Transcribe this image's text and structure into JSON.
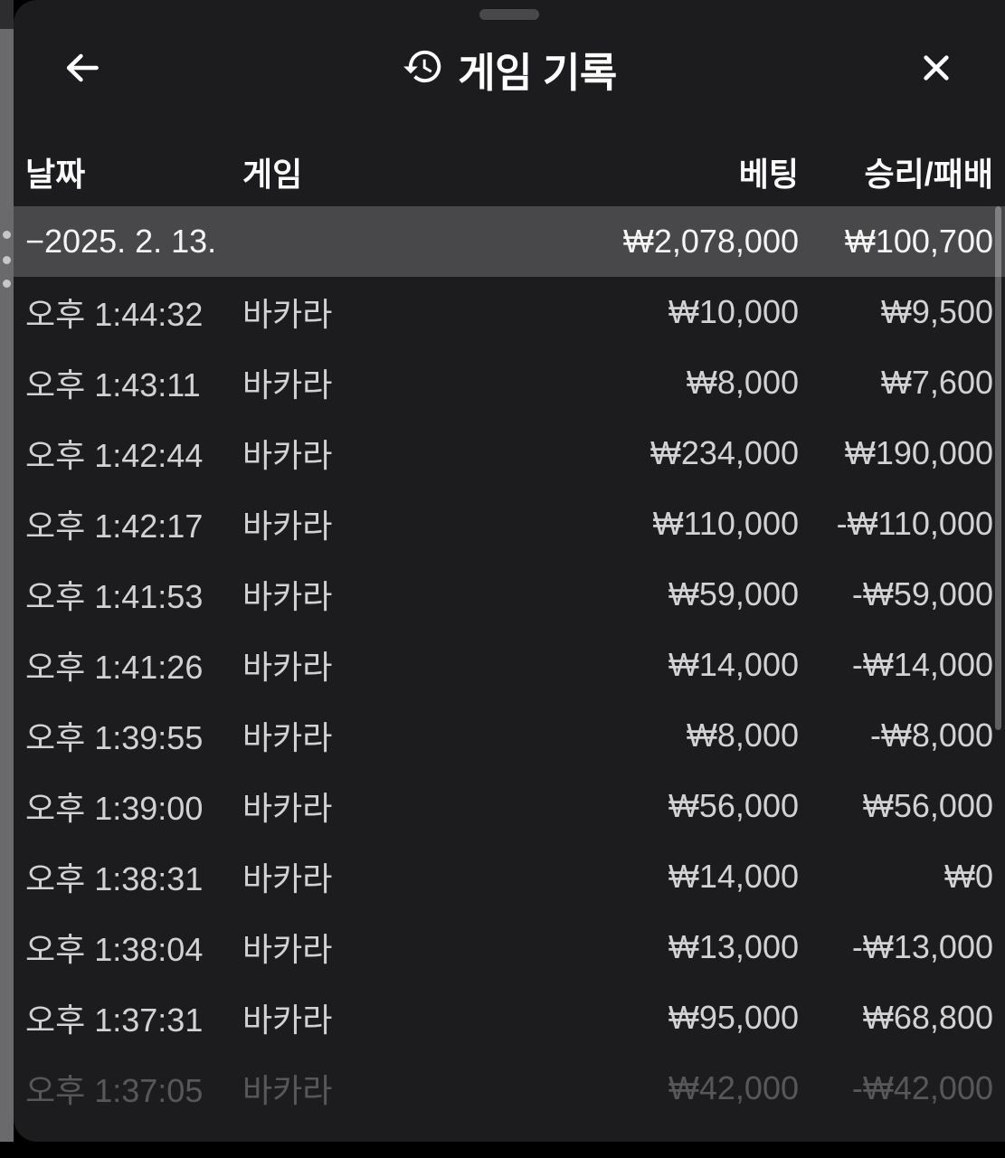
{
  "modal": {
    "title": "게임 기록",
    "icons": {
      "back": "arrow-left",
      "title": "history-clock-arrow",
      "close": "x-mark"
    }
  },
  "table": {
    "columns": [
      "날짜",
      "게임",
      "베팅",
      "승리/패배"
    ],
    "summary": {
      "date": "−2025. 2. 13.",
      "bet": "₩2,078,000",
      "winloss": "₩100,700"
    },
    "rows": [
      {
        "time": "오후 1:44:32",
        "game": "바카라",
        "bet": "₩10,000",
        "winloss": "₩9,500",
        "faded": false
      },
      {
        "time": "오후 1:43:11",
        "game": "바카라",
        "bet": "₩8,000",
        "winloss": "₩7,600",
        "faded": false
      },
      {
        "time": "오후 1:42:44",
        "game": "바카라",
        "bet": "₩234,000",
        "winloss": "₩190,000",
        "faded": false
      },
      {
        "time": "오후 1:42:17",
        "game": "바카라",
        "bet": "₩110,000",
        "winloss": "-₩110,000",
        "faded": false
      },
      {
        "time": "오후 1:41:53",
        "game": "바카라",
        "bet": "₩59,000",
        "winloss": "-₩59,000",
        "faded": false
      },
      {
        "time": "오후 1:41:26",
        "game": "바카라",
        "bet": "₩14,000",
        "winloss": "-₩14,000",
        "faded": false
      },
      {
        "time": "오후 1:39:55",
        "game": "바카라",
        "bet": "₩8,000",
        "winloss": "-₩8,000",
        "faded": false
      },
      {
        "time": "오후 1:39:00",
        "game": "바카라",
        "bet": "₩56,000",
        "winloss": "₩56,000",
        "faded": false
      },
      {
        "time": "오후 1:38:31",
        "game": "바카라",
        "bet": "₩14,000",
        "winloss": "₩0",
        "faded": false
      },
      {
        "time": "오후 1:38:04",
        "game": "바카라",
        "bet": "₩13,000",
        "winloss": "-₩13,000",
        "faded": false
      },
      {
        "time": "오후 1:37:31",
        "game": "바카라",
        "bet": "₩95,000",
        "winloss": "₩68,800",
        "faded": false
      },
      {
        "time": "오후 1:37:05",
        "game": "바카라",
        "bet": "₩42,000",
        "winloss": "-₩42,000",
        "faded": true
      }
    ]
  },
  "colors": {
    "modal_bg": "#1c1c1e",
    "summary_row_bg": "#48484a",
    "row_text": "#d2d2d4",
    "header_text": "#ffffff",
    "underlay_strip": "#6a6a6c",
    "scrollbar": "rgba(255,255,255,0.30)"
  }
}
